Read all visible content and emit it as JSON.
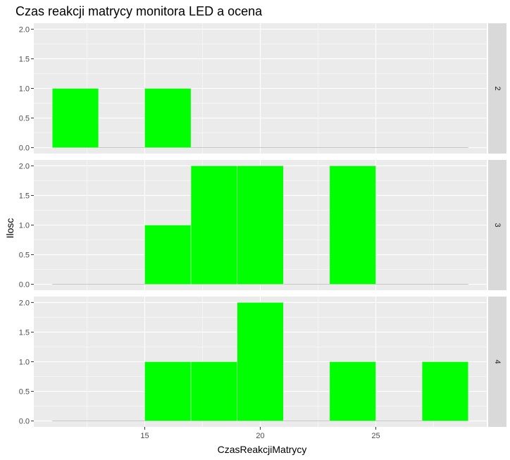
{
  "chart_data": {
    "type": "bar",
    "title": "Czas reakcji matrycy monitora LED a ocena",
    "xlabel": "CzasReakcjiMatrycy",
    "ylabel": "Ilosc",
    "xlim": [
      10.2,
      29.8
    ],
    "ylim": [
      -0.1,
      2.1
    ],
    "x_ticks": [
      15,
      20,
      25
    ],
    "y_ticks": [
      "0.0",
      "0.5",
      "1.0",
      "1.5",
      "2.0"
    ],
    "bin_width": 2,
    "bin_starts": [
      11,
      13,
      15,
      17,
      19,
      21,
      23,
      25,
      27
    ],
    "baseline_range": [
      11,
      29
    ],
    "bar_fill": "#00ff00",
    "bar_outline": "#e5e5e5",
    "panel_background": "#ebebeb",
    "strip_background": "#d9d9d9",
    "grid_color": "#ffffff",
    "baseline_color": "#b3b3b3",
    "facets": [
      {
        "label": "2",
        "counts": [
          1,
          0,
          1,
          0,
          0,
          0,
          0,
          0,
          0
        ]
      },
      {
        "label": "3",
        "counts": [
          0,
          0,
          1,
          2,
          2,
          0,
          2,
          0,
          0
        ]
      },
      {
        "label": "4",
        "counts": [
          0,
          0,
          1,
          1,
          2,
          0,
          1,
          0,
          1
        ]
      }
    ]
  }
}
